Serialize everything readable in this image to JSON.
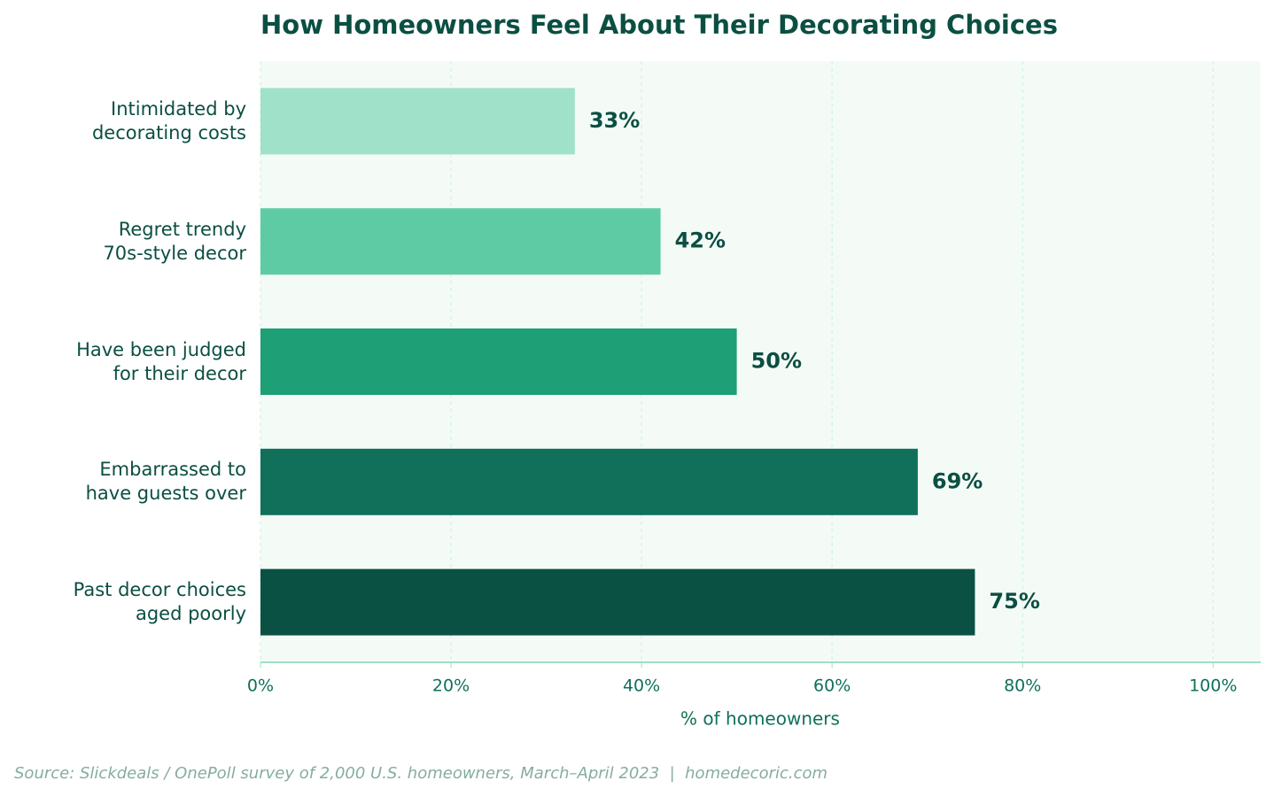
{
  "chart_data": {
    "type": "barh",
    "title": "How Homeowners Feel About Their Decorating Choices",
    "categories": [
      "Intimidated by\ndecorating costs",
      "Regret trendy\n70s-style decor",
      "Have been judged\nfor their decor",
      "Embarrassed to\nhave guests over",
      "Past decor choices\naged poorly"
    ],
    "values": [
      33,
      42,
      50,
      69,
      75
    ],
    "value_labels": [
      "33%",
      "42%",
      "50%",
      "69%",
      "75%"
    ],
    "colors": [
      "#a0e1ca",
      "#5ecba5",
      "#1e9f75",
      "#10705a",
      "#0a5143"
    ],
    "xlim": [
      0,
      105
    ],
    "xticks": [
      {
        "value": 0,
        "label": "0%"
      },
      {
        "value": 20,
        "label": "20%"
      },
      {
        "value": 40,
        "label": "40%"
      },
      {
        "value": 60,
        "label": "60%"
      },
      {
        "value": 80,
        "label": "80%"
      },
      {
        "value": 100,
        "label": "100%"
      }
    ],
    "xlabel": "% of homeowners",
    "grid": true,
    "source": "Source: Slickdeals / OnePoll survey of 2,000 U.S. homeowners, March–April 2023  |  homedecoric.com"
  }
}
